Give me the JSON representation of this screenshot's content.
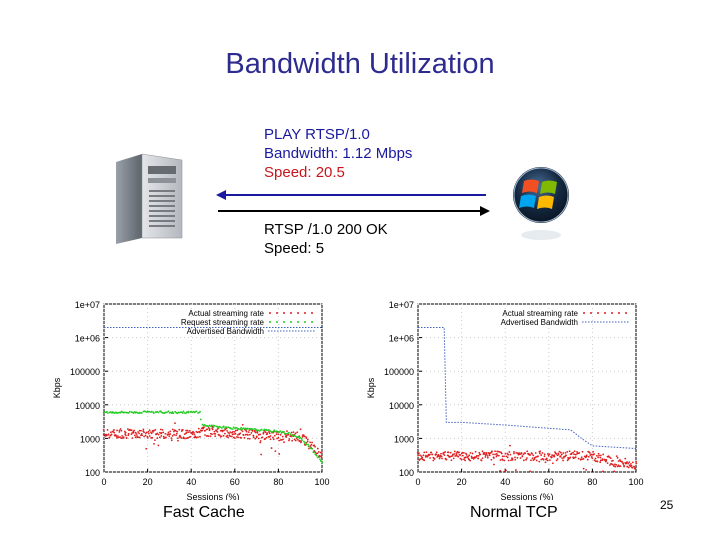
{
  "title": "Bandwidth Utilization",
  "request": {
    "line1": "PLAY  RTSP/1.0",
    "line2": "Bandwidth: 1.12 Mbps",
    "line3": "Speed: 20.5"
  },
  "response": {
    "line1": "RTSP /1.0 200 OK",
    "line2": "Speed: 5"
  },
  "colors": {
    "title": "#2e2b8f",
    "request_text": "#1a1a9e",
    "speed_text": "#c8151b",
    "arrow_left": "#1a1a9e",
    "arrow_right": "#000000",
    "actual_rate": "#e02020",
    "request_rate": "#22cc22",
    "advertised": "#4060c0"
  },
  "icons": {
    "server": "server-icon",
    "client": "windows-logo-icon"
  },
  "captions": {
    "left": "Fast Cache",
    "right": "Normal TCP"
  },
  "page_number": "25",
  "chart_data": [
    {
      "type": "scatter",
      "name": "Fast Cache",
      "xlabel": "Sessions (%)",
      "ylabel": "Kbps",
      "x_ticks": [
        "0",
        "20",
        "40",
        "60",
        "80",
        "100"
      ],
      "y_ticks": [
        "1e+07",
        "1e+06",
        "100000",
        "10000",
        "1000",
        "100"
      ],
      "xlim": [
        0,
        100
      ],
      "ylim": [
        100,
        10000000
      ],
      "y_scale": "log",
      "legend_position": "top-right",
      "series": [
        {
          "name": "Actual streaming rate",
          "style": "points",
          "color": "#e02020",
          "x": [
            0,
            10,
            20,
            30,
            40,
            45,
            50,
            60,
            70,
            80,
            90,
            95,
            100
          ],
          "y": [
            1400,
            1400,
            1350,
            1400,
            1300,
            1600,
            1500,
            1400,
            1300,
            1200,
            1100,
            600,
            300
          ]
        },
        {
          "name": "Request streaming rate",
          "style": "points",
          "color": "#22cc22",
          "x": [
            0,
            10,
            20,
            30,
            40,
            44,
            45,
            50,
            60,
            70,
            80,
            85,
            90,
            95,
            100
          ],
          "y": [
            6000,
            6000,
            6000,
            6000,
            6000,
            6000,
            2500,
            2300,
            2000,
            1800,
            1600,
            1400,
            1000,
            500,
            200
          ]
        },
        {
          "name": "Advertised Bandwidth",
          "style": "dotted",
          "color": "#4060c0",
          "x": [
            0,
            100
          ],
          "y": [
            2000000,
            2000000
          ]
        }
      ]
    },
    {
      "type": "scatter",
      "name": "Normal TCP",
      "xlabel": "Sessions (%)",
      "ylabel": "Kbps",
      "x_ticks": [
        "0",
        "20",
        "40",
        "60",
        "80",
        "100"
      ],
      "y_ticks": [
        "1e+07",
        "1e+06",
        "100000",
        "10000",
        "1000",
        "100"
      ],
      "xlim": [
        0,
        100
      ],
      "ylim": [
        100,
        10000000
      ],
      "y_scale": "log",
      "legend_position": "top-right",
      "series": [
        {
          "name": "Actual streaming rate",
          "style": "points",
          "color": "#e02020",
          "x": [
            0,
            10,
            20,
            30,
            40,
            50,
            60,
            70,
            80,
            85,
            90,
            100
          ],
          "y": [
            300,
            300,
            300,
            300,
            300,
            300,
            300,
            300,
            300,
            250,
            200,
            150
          ]
        },
        {
          "name": "Advertised Bandwidth",
          "style": "dotted",
          "color": "#4060c0",
          "x": [
            0,
            12,
            13,
            20,
            40,
            60,
            70,
            75,
            80,
            100
          ],
          "y": [
            2000000,
            2000000,
            3000,
            3000,
            2500,
            2000,
            1800,
            1000,
            600,
            500
          ]
        }
      ]
    }
  ]
}
